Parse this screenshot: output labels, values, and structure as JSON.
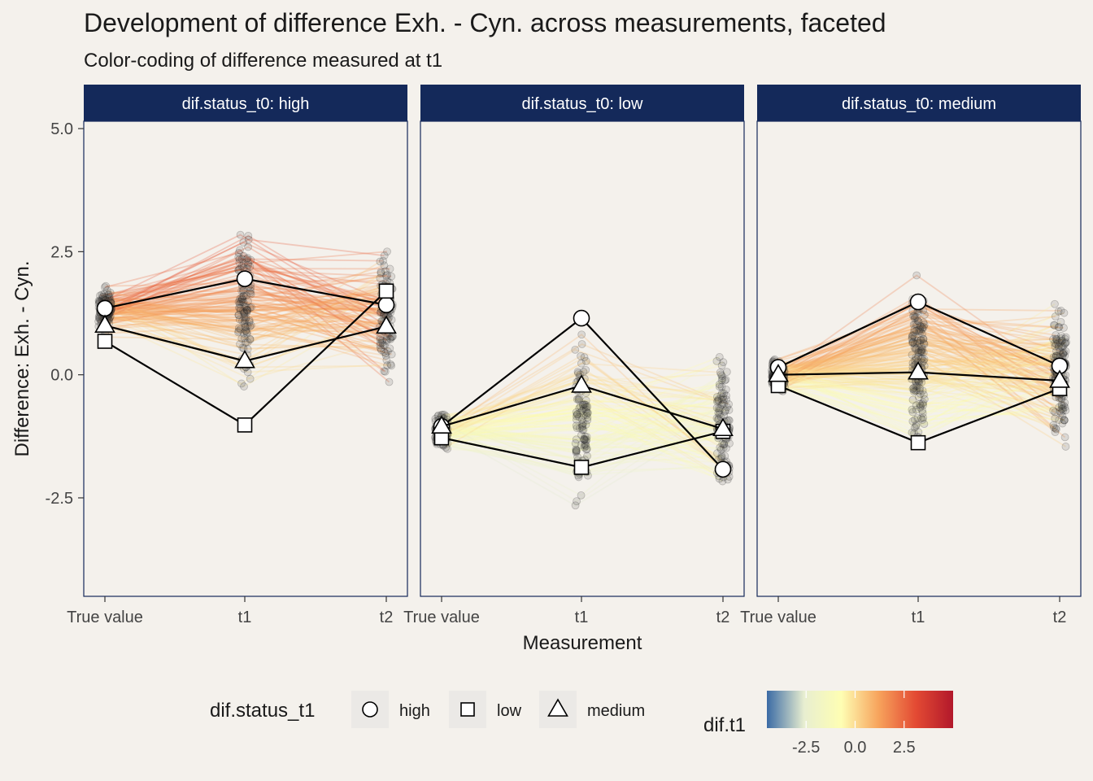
{
  "chart_data": {
    "type": "line",
    "title": "Development of difference Exh. - Cyn. across measurements, faceted",
    "subtitle": "Color-coding of difference measured at t1",
    "xlabel": "Measurement",
    "ylabel": "Difference: Exh. - Cyn.",
    "categories": [
      "True value",
      "t1",
      "t2"
    ],
    "ylim": [
      -4.5,
      5.15
    ],
    "y_ticks": [
      -2.5,
      0.0,
      2.5,
      5.0
    ],
    "y_tick_labels": [
      "-2.5",
      "0.0",
      "2.5",
      "5.0"
    ],
    "grid": false,
    "facet_variable": "dif.status_t0",
    "facets": [
      {
        "label": "dif.status_t0: high",
        "series": [
          {
            "name": "high",
            "values": [
              1.35,
              1.95,
              1.42
            ]
          },
          {
            "name": "low",
            "values": [
              0.68,
              -1.02,
              1.7
            ]
          },
          {
            "name": "medium",
            "values": [
              1.0,
              0.28,
              0.98
            ]
          }
        ],
        "individuals": {
          "count": 120,
          "t0_center": 1.3,
          "t0_spread": 0.45,
          "t1_center": 1.4,
          "t1_spread": 1.2,
          "t2_center": 1.3,
          "t2_spread": 0.95
        }
      },
      {
        "label": "dif.status_t0: low",
        "series": [
          {
            "name": "high",
            "values": [
              -1.05,
              1.15,
              -1.92
            ]
          },
          {
            "name": "low",
            "values": [
              -1.28,
              -1.88,
              -1.15
            ]
          },
          {
            "name": "medium",
            "values": [
              -1.05,
              -0.22,
              -1.1
            ]
          }
        ],
        "individuals": {
          "count": 110,
          "t0_center": -1.15,
          "t0_spread": 0.4,
          "t1_center": -1.0,
          "t1_spread": 1.25,
          "t2_center": -1.1,
          "t2_spread": 1.0
        }
      },
      {
        "label": "dif.status_t0: medium",
        "series": [
          {
            "name": "high",
            "values": [
              0.15,
              1.48,
              0.18
            ]
          },
          {
            "name": "low",
            "values": [
              -0.22,
              -1.38,
              -0.28
            ]
          },
          {
            "name": "medium",
            "values": [
              0.0,
              0.05,
              -0.12
            ]
          }
        ],
        "individuals": {
          "count": 160,
          "t0_center": 0.0,
          "t0_spread": 0.3,
          "t1_center": 0.2,
          "t1_spread": 1.15,
          "t2_center": 0.0,
          "t2_spread": 0.95
        }
      }
    ],
    "shape_legend": {
      "title": "dif.status_t1",
      "entries": [
        {
          "label": "high",
          "shape": "circle"
        },
        {
          "label": "low",
          "shape": "square"
        },
        {
          "label": "medium",
          "shape": "triangle"
        }
      ]
    },
    "color_legend": {
      "title": "dif.t1",
      "range": [
        -4.5,
        5.0
      ],
      "ticks": [
        -2.5,
        0.0,
        2.5
      ],
      "tick_labels": [
        "-2.5",
        "0.0",
        "2.5"
      ],
      "colors": [
        "#3b6ba5",
        "#e8eed0",
        "#fefeb3",
        "#f7a35c",
        "#e34a33",
        "#b2182b"
      ]
    },
    "legend_position": "bottom"
  },
  "colors": {
    "background": "#f4f1ec",
    "strip": "#14295a",
    "panel_border": "#14295a",
    "text": "#1a1a1a"
  }
}
